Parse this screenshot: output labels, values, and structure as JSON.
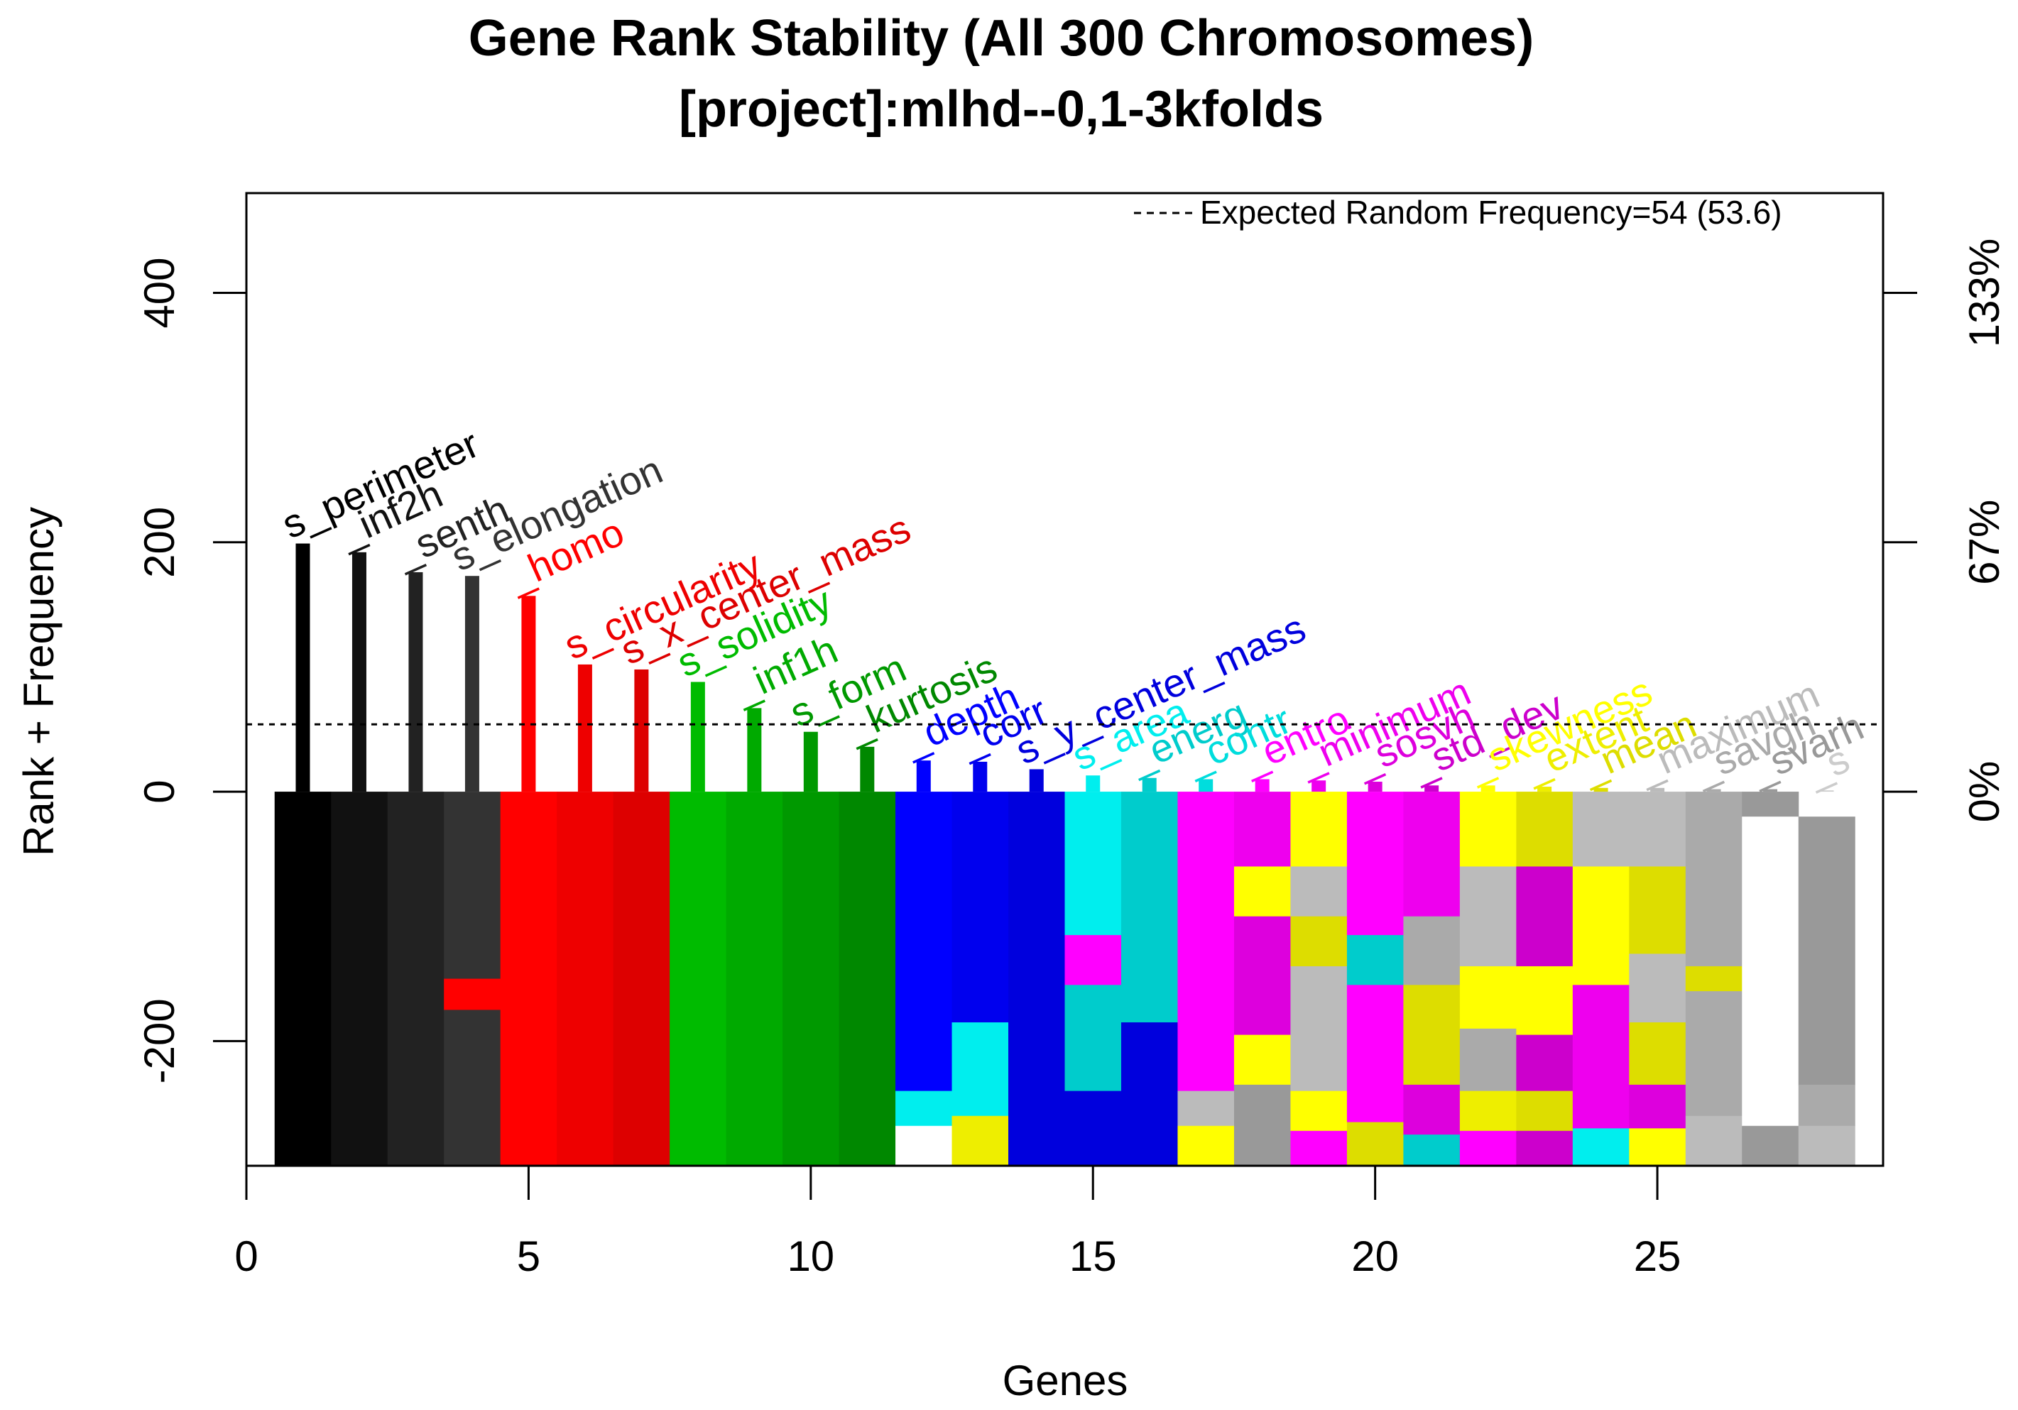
{
  "chart_data": {
    "type": "bar",
    "title": "Gene Rank Stability  (All 300 Chromosomes)",
    "subtitle": "[project]:mlhd--0,1-3kfolds",
    "xlabel": "Genes",
    "ylabel": "Rank + Frequency",
    "xlim": [
      0,
      29
    ],
    "ylim": [
      -300,
      480
    ],
    "x_ticks": [
      "0",
      "5",
      "10",
      "15",
      "20",
      "25"
    ],
    "x_tick_values": [
      0,
      5,
      10,
      15,
      20,
      25
    ],
    "y_ticks": [
      "-200",
      "0",
      "200",
      "400"
    ],
    "y_tick_values": [
      -200,
      0,
      200,
      400
    ],
    "right_axis_ticks": [
      "0%",
      "67%",
      "133%"
    ],
    "right_axis_tick_values": [
      0,
      200,
      400
    ],
    "expected_random_frequency": 54,
    "legend_text": "Expected Random Frequency=54 (53.6)",
    "legend_position": "top-right",
    "genes": [
      {
        "x": 1,
        "label": "s_perimeter",
        "freq": 199,
        "color": "#000000"
      },
      {
        "x": 2,
        "label": "_inf2h",
        "freq": 192,
        "color": "#111111"
      },
      {
        "x": 3,
        "label": "_senth",
        "freq": 176,
        "color": "#222222"
      },
      {
        "x": 4,
        "label": "s_elongation",
        "freq": 173,
        "color": "#333333"
      },
      {
        "x": 5,
        "label": "_homo",
        "freq": 157,
        "color": "#ff0000"
      },
      {
        "x": 6,
        "label": "s_circularity",
        "freq": 102,
        "color": "#ee0000"
      },
      {
        "x": 7,
        "label": "s_x_center_mass",
        "freq": 98,
        "color": "#dd0000"
      },
      {
        "x": 8,
        "label": "s_solidity",
        "freq": 88,
        "color": "#00bb00"
      },
      {
        "x": 9,
        "label": "_inf1h",
        "freq": 67,
        "color": "#00aa00"
      },
      {
        "x": 10,
        "label": "s_form",
        "freq": 48,
        "color": "#009900"
      },
      {
        "x": 11,
        "label": "_kurtosis",
        "freq": 36,
        "color": "#008800"
      },
      {
        "x": 12,
        "label": "_depth",
        "freq": 25,
        "color": "#0000ff"
      },
      {
        "x": 13,
        "label": "_corr",
        "freq": 24,
        "color": "#0000ee"
      },
      {
        "x": 14,
        "label": "s_y_center_mass",
        "freq": 18,
        "color": "#0000dd"
      },
      {
        "x": 15,
        "label": "s_area",
        "freq": 13,
        "color": "#00eeee"
      },
      {
        "x": 16,
        "label": "_energ",
        "freq": 11,
        "color": "#00cccc"
      },
      {
        "x": 17,
        "label": "_contr",
        "freq": 10,
        "color": "#00dddd"
      },
      {
        "x": 18,
        "label": "_entro",
        "freq": 10,
        "color": "#ff00ff"
      },
      {
        "x": 19,
        "label": "_minimum",
        "freq": 9,
        "color": "#ee00ee"
      },
      {
        "x": 20,
        "label": "_sosvh",
        "freq": 8,
        "color": "#dd00dd"
      },
      {
        "x": 21,
        "label": "_std_dev",
        "freq": 5,
        "color": "#cc00cc"
      },
      {
        "x": 22,
        "label": "_skewness",
        "freq": 5,
        "color": "#ffff00"
      },
      {
        "x": 23,
        "label": "_extent",
        "freq": 4,
        "color": "#eeee00"
      },
      {
        "x": 24,
        "label": "_mean",
        "freq": 3,
        "color": "#dddd00"
      },
      {
        "x": 25,
        "label": "_maximum",
        "freq": 3,
        "color": "#bbbbbb"
      },
      {
        "x": 26,
        "label": "_savgh",
        "freq": 2,
        "color": "#aaaaaa"
      },
      {
        "x": 27,
        "label": "_svarh",
        "freq": 2,
        "color": "#999999"
      },
      {
        "x": 28,
        "label": "_s",
        "freq": 1,
        "color": "#cccccc"
      }
    ],
    "rank_strips": [
      {
        "x": 1,
        "segments": [
          {
            "from": 0,
            "to": 300,
            "color": "#000000"
          }
        ]
      },
      {
        "x": 2,
        "segments": [
          {
            "from": 0,
            "to": 300,
            "color": "#111111"
          }
        ]
      },
      {
        "x": 3,
        "segments": [
          {
            "from": 0,
            "to": 300,
            "color": "#222222"
          }
        ]
      },
      {
        "x": 4,
        "segments": [
          {
            "from": 0,
            "to": 150,
            "color": "#333333"
          },
          {
            "from": 150,
            "to": 175,
            "color": "#ff0000"
          },
          {
            "from": 175,
            "to": 300,
            "color": "#333333"
          }
        ]
      },
      {
        "x": 5,
        "segments": [
          {
            "from": 0,
            "to": 300,
            "color": "#ff0000"
          }
        ]
      },
      {
        "x": 6,
        "segments": [
          {
            "from": 0,
            "to": 300,
            "color": "#ee0000"
          }
        ]
      },
      {
        "x": 7,
        "segments": [
          {
            "from": 0,
            "to": 300,
            "color": "#dd0000"
          }
        ]
      },
      {
        "x": 8,
        "segments": [
          {
            "from": 0,
            "to": 300,
            "color": "#00bb00"
          }
        ]
      },
      {
        "x": 9,
        "segments": [
          {
            "from": 0,
            "to": 300,
            "color": "#00aa00"
          }
        ]
      },
      {
        "x": 10,
        "segments": [
          {
            "from": 0,
            "to": 300,
            "color": "#009900"
          }
        ]
      },
      {
        "x": 11,
        "segments": [
          {
            "from": 0,
            "to": 300,
            "color": "#008800"
          }
        ]
      },
      {
        "x": 12,
        "segments": [
          {
            "from": 0,
            "to": 240,
            "color": "#0000ff"
          },
          {
            "from": 240,
            "to": 268,
            "color": "#00eeee"
          },
          {
            "from": 268,
            "to": 300,
            "color": "#ffffff"
          }
        ]
      },
      {
        "x": 13,
        "segments": [
          {
            "from": 0,
            "to": 185,
            "color": "#0000ee"
          },
          {
            "from": 185,
            "to": 260,
            "color": "#00eeee"
          },
          {
            "from": 260,
            "to": 300,
            "color": "#eeee00"
          }
        ]
      },
      {
        "x": 14,
        "segments": [
          {
            "from": 0,
            "to": 300,
            "color": "#0000dd"
          }
        ]
      },
      {
        "x": 15,
        "segments": [
          {
            "from": 0,
            "to": 115,
            "color": "#00eeee"
          },
          {
            "from": 115,
            "to": 155,
            "color": "#ff00ff"
          },
          {
            "from": 155,
            "to": 240,
            "color": "#00cccc"
          },
          {
            "from": 240,
            "to": 300,
            "color": "#0000dd"
          }
        ]
      },
      {
        "x": 16,
        "segments": [
          {
            "from": 0,
            "to": 185,
            "color": "#00cccc"
          },
          {
            "from": 185,
            "to": 300,
            "color": "#0000dd"
          }
        ]
      },
      {
        "x": 17,
        "segments": [
          {
            "from": 0,
            "to": 240,
            "color": "#ff00ff"
          },
          {
            "from": 240,
            "to": 268,
            "color": "#bbbbbb"
          },
          {
            "from": 268,
            "to": 300,
            "color": "#ffff00"
          }
        ]
      },
      {
        "x": 18,
        "segments": [
          {
            "from": 0,
            "to": 60,
            "color": "#ee00ee"
          },
          {
            "from": 60,
            "to": 100,
            "color": "#ffff00"
          },
          {
            "from": 100,
            "to": 195,
            "color": "#dd00dd"
          },
          {
            "from": 195,
            "to": 235,
            "color": "#ffff00"
          },
          {
            "from": 235,
            "to": 300,
            "color": "#999999"
          }
        ]
      },
      {
        "x": 19,
        "segments": [
          {
            "from": 0,
            "to": 60,
            "color": "#ffff00"
          },
          {
            "from": 60,
            "to": 100,
            "color": "#bbbbbb"
          },
          {
            "from": 100,
            "to": 140,
            "color": "#dddd00"
          },
          {
            "from": 140,
            "to": 240,
            "color": "#bbbbbb"
          },
          {
            "from": 240,
            "to": 272,
            "color": "#ffff00"
          },
          {
            "from": 272,
            "to": 300,
            "color": "#ff00ff"
          }
        ]
      },
      {
        "x": 20,
        "segments": [
          {
            "from": 0,
            "to": 115,
            "color": "#ff00ff"
          },
          {
            "from": 115,
            "to": 155,
            "color": "#00cccc"
          },
          {
            "from": 155,
            "to": 265,
            "color": "#ff00ff"
          },
          {
            "from": 265,
            "to": 300,
            "color": "#dddd00"
          }
        ]
      },
      {
        "x": 21,
        "segments": [
          {
            "from": 0,
            "to": 100,
            "color": "#ee00ee"
          },
          {
            "from": 100,
            "to": 155,
            "color": "#aaaaaa"
          },
          {
            "from": 155,
            "to": 235,
            "color": "#dddd00"
          },
          {
            "from": 235,
            "to": 275,
            "color": "#dd00dd"
          },
          {
            "from": 275,
            "to": 300,
            "color": "#00cccc"
          }
        ]
      },
      {
        "x": 22,
        "segments": [
          {
            "from": 0,
            "to": 60,
            "color": "#ffff00"
          },
          {
            "from": 60,
            "to": 140,
            "color": "#bbbbbb"
          },
          {
            "from": 140,
            "to": 190,
            "color": "#ffff00"
          },
          {
            "from": 190,
            "to": 240,
            "color": "#aaaaaa"
          },
          {
            "from": 240,
            "to": 272,
            "color": "#eeee00"
          },
          {
            "from": 272,
            "to": 300,
            "color": "#ff00ff"
          }
        ]
      },
      {
        "x": 23,
        "segments": [
          {
            "from": 0,
            "to": 60,
            "color": "#dddd00"
          },
          {
            "from": 60,
            "to": 140,
            "color": "#cc00cc"
          },
          {
            "from": 140,
            "to": 195,
            "color": "#ffff00"
          },
          {
            "from": 195,
            "to": 240,
            "color": "#cc00cc"
          },
          {
            "from": 240,
            "to": 272,
            "color": "#dddd00"
          },
          {
            "from": 272,
            "to": 300,
            "color": "#cc00cc"
          }
        ]
      },
      {
        "x": 24,
        "segments": [
          {
            "from": 0,
            "to": 60,
            "color": "#bbbbbb"
          },
          {
            "from": 60,
            "to": 155,
            "color": "#ffff00"
          },
          {
            "from": 155,
            "to": 270,
            "color": "#ee00ee"
          },
          {
            "from": 270,
            "to": 300,
            "color": "#00eeee"
          }
        ]
      },
      {
        "x": 25,
        "segments": [
          {
            "from": 0,
            "to": 60,
            "color": "#bbbbbb"
          },
          {
            "from": 60,
            "to": 130,
            "color": "#dddd00"
          },
          {
            "from": 130,
            "to": 185,
            "color": "#bbbbbb"
          },
          {
            "from": 185,
            "to": 235,
            "color": "#dddd00"
          },
          {
            "from": 235,
            "to": 270,
            "color": "#dd00dd"
          },
          {
            "from": 270,
            "to": 300,
            "color": "#ffff00"
          }
        ]
      },
      {
        "x": 26,
        "segments": [
          {
            "from": 0,
            "to": 140,
            "color": "#aaaaaa"
          },
          {
            "from": 140,
            "to": 160,
            "color": "#dddd00"
          },
          {
            "from": 160,
            "to": 260,
            "color": "#aaaaaa"
          },
          {
            "from": 260,
            "to": 300,
            "color": "#bbbbbb"
          }
        ]
      },
      {
        "x": 27,
        "segments": [
          {
            "from": 0,
            "to": 20,
            "color": "#999999"
          },
          {
            "from": 20,
            "to": 268,
            "color": "#ffffff"
          },
          {
            "from": 268,
            "to": 300,
            "color": "#999999"
          }
        ]
      },
      {
        "x": 28,
        "segments": [
          {
            "from": 20,
            "to": 235,
            "color": "#999999"
          },
          {
            "from": 235,
            "to": 268,
            "color": "#aaaaaa"
          },
          {
            "from": 268,
            "to": 300,
            "color": "#bbbbbb"
          }
        ]
      }
    ]
  }
}
